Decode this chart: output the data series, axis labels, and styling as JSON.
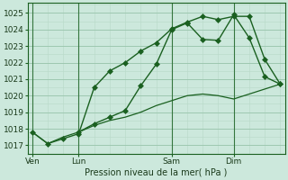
{
  "bg_color": "#cce8dc",
  "grid_color_major": "#9dc8b0",
  "grid_color_minor": "#b8d8c8",
  "line_color": "#1a6020",
  "title": "Pression niveau de la mer( hPa )",
  "ylim": [
    1016.5,
    1025.6
  ],
  "yticks": [
    1017,
    1018,
    1019,
    1020,
    1021,
    1022,
    1023,
    1024,
    1025
  ],
  "xlim": [
    -0.3,
    16.3
  ],
  "xlabel_ticks": [
    {
      "label": "Ven",
      "x": 0
    },
    {
      "label": "Lun",
      "x": 3
    },
    {
      "label": "Sam",
      "x": 9
    },
    {
      "label": "Dim",
      "x": 13
    }
  ],
  "vline_x": [
    0,
    3,
    9,
    13
  ],
  "series1_x": [
    0,
    1,
    2,
    3,
    4,
    5,
    6,
    7,
    8,
    9,
    10,
    11,
    12,
    13,
    14,
    15,
    16
  ],
  "series1_y": [
    1017.8,
    1017.1,
    1017.4,
    1017.7,
    1020.5,
    1021.5,
    1022.0,
    1022.7,
    1023.2,
    1024.05,
    1024.45,
    1024.8,
    1024.6,
    1024.8,
    1024.8,
    1022.2,
    1020.7
  ],
  "series2_x": [
    0,
    1,
    2,
    3,
    4,
    5,
    6,
    7,
    8,
    9,
    10,
    11,
    12,
    13,
    14,
    15,
    16
  ],
  "series2_y": [
    1017.8,
    1017.1,
    1017.5,
    1017.8,
    1018.2,
    1018.5,
    1018.7,
    1019.0,
    1019.4,
    1019.7,
    1020.0,
    1020.1,
    1020.0,
    1019.8,
    1020.1,
    1020.4,
    1020.7
  ],
  "series3_x": [
    3,
    4,
    5,
    6,
    7,
    8,
    9,
    10,
    11,
    12,
    13,
    14,
    15,
    16
  ],
  "series3_y": [
    1017.8,
    1018.3,
    1018.7,
    1019.1,
    1020.6,
    1021.9,
    1024.0,
    1024.4,
    1023.4,
    1023.35,
    1024.9,
    1023.5,
    1021.15,
    1020.7
  ]
}
